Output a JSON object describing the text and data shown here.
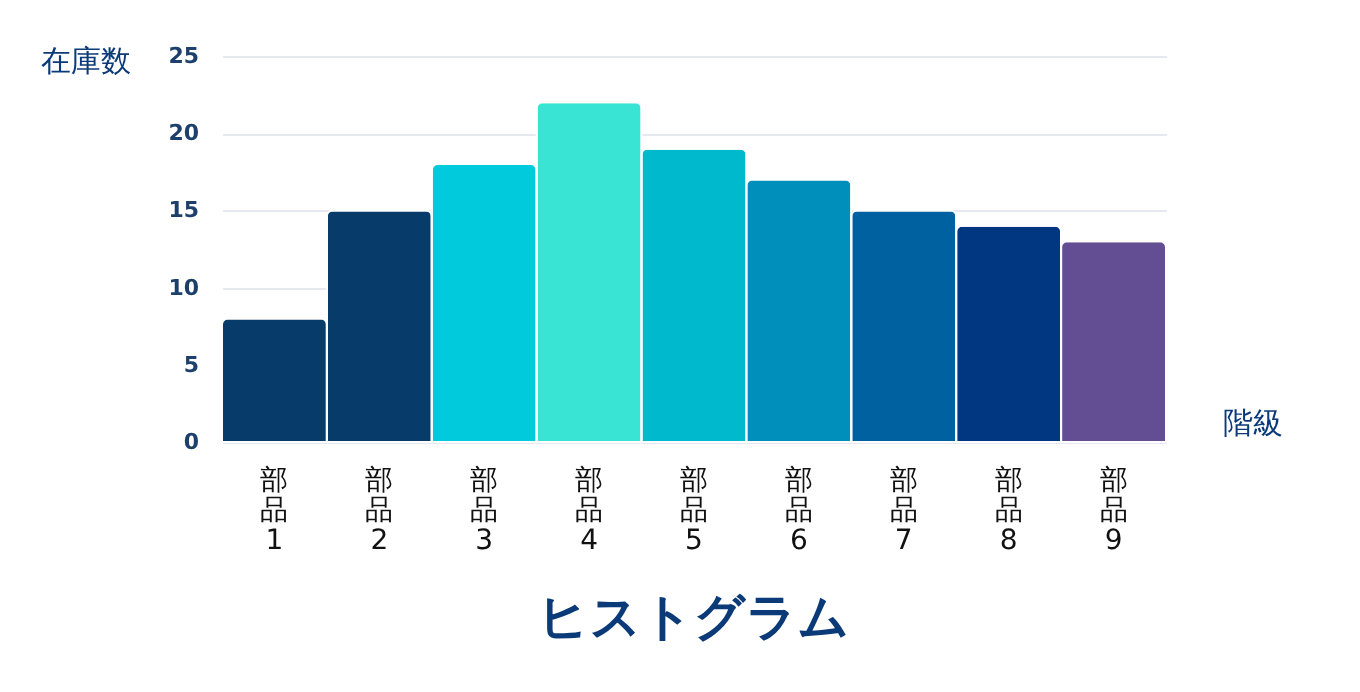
{
  "chart_data": {
    "type": "bar",
    "title": "ヒストグラム",
    "xlabel": "階級",
    "ylabel": "在庫数",
    "categories": [
      "部品1",
      "部品2",
      "部品3",
      "部品4",
      "部品5",
      "部品6",
      "部品7",
      "部品8",
      "部品9"
    ],
    "values": [
      8,
      15,
      18,
      22,
      19,
      17,
      15,
      14,
      13
    ],
    "colors": [
      "#073b69",
      "#073b69",
      "#00cadb",
      "#3ae4d5",
      "#00b9cc",
      "#008fbb",
      "#0061a0",
      "#003780",
      "#634e93"
    ],
    "ylim": [
      0,
      25
    ],
    "yticks": [
      0,
      5,
      10,
      15,
      20,
      25
    ],
    "grid": "y"
  }
}
